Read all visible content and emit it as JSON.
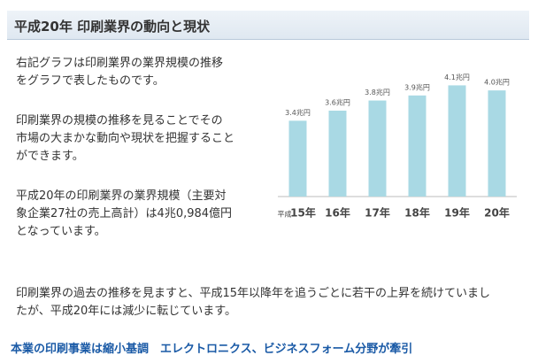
{
  "header": {
    "title": "平成20年 印刷業界の動向と現状"
  },
  "paragraphs": [
    [
      "右記グラフは印刷業界の業界規模の推移",
      "をグラフで表したものです。"
    ],
    [
      "印刷業界の規模の推移を見ることでその",
      "市場の大まかな動向や現状を把握すること",
      "ができます。"
    ],
    [
      "平成20年の印刷業界の業界規模（主要対",
      "象企業27社の売上高計）は4兆0,984億円",
      "となっています。"
    ]
  ],
  "bottom_paragraph": [
    "印刷業界の過去の推移を見ますと、平成15年以降年を追うごとに若干の上昇を続けていまし",
    "たが、平成20年には減少に転じています。"
  ],
  "footer_link": "本業の印刷事業は縮小基調　エレクトロニクス、ビジネスフォーム分野が牽引",
  "chart_data": {
    "type": "bar",
    "x_prefix": "平成",
    "categories": [
      "15年",
      "16年",
      "17年",
      "18年",
      "19年",
      "20年"
    ],
    "values": [
      3.4,
      3.6,
      3.8,
      3.9,
      4.1,
      4.0
    ],
    "value_labels": [
      "3.4兆円",
      "3.6兆円",
      "3.8兆円",
      "3.9兆円",
      "4.1兆円",
      "4.0兆円"
    ],
    "color": "#a9d9e4",
    "ylim": [
      1.9,
      4.3
    ]
  }
}
